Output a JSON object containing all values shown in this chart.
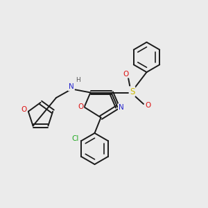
{
  "background_color": "#ebebeb",
  "bond_color": "#1a1a1a",
  "atom_colors": {
    "O": "#dd1111",
    "N": "#2222cc",
    "S": "#ccbb00",
    "Cl": "#22aa22",
    "C": "#1a1a1a",
    "H": "#555555"
  },
  "figsize": [
    3.0,
    3.0
  ],
  "dpi": 100
}
